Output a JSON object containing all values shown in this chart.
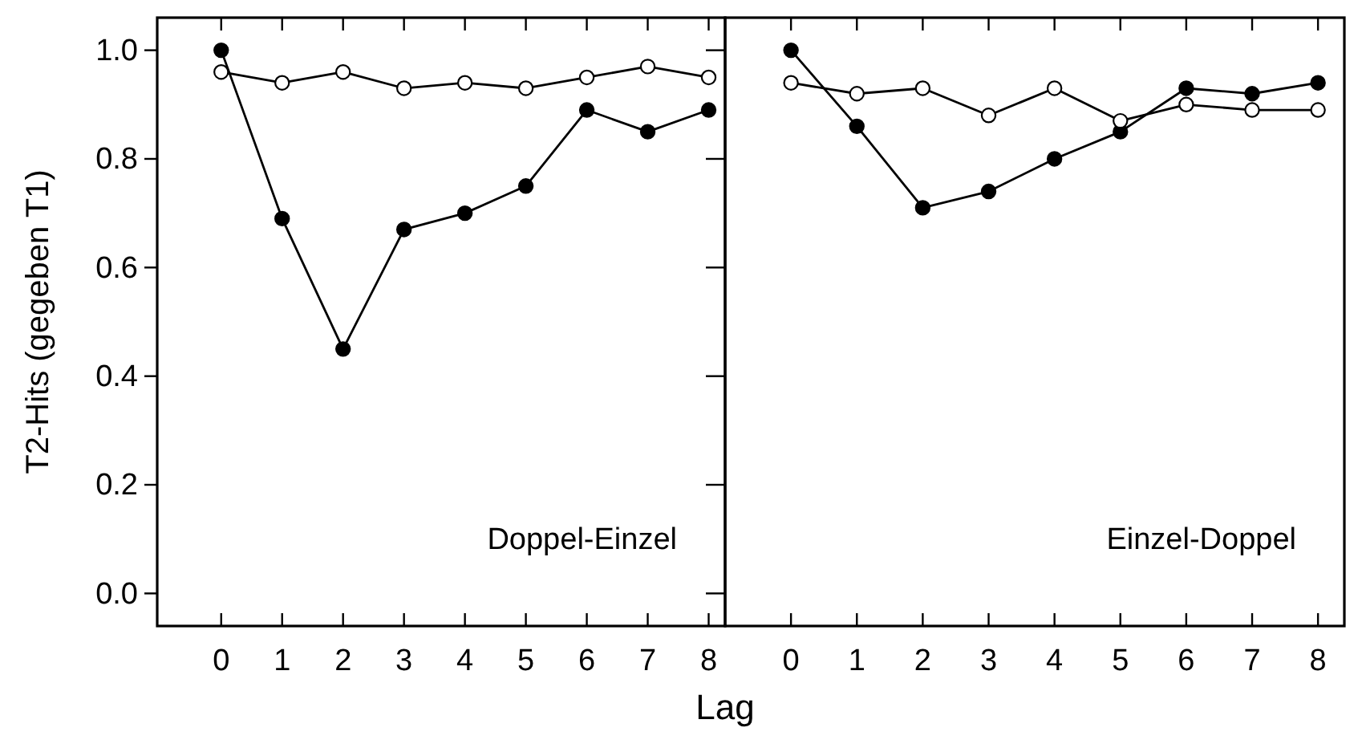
{
  "chart_data": [
    {
      "type": "line",
      "ylabel": "T2-Hits (gegeben T1)",
      "xlabel": "Lag",
      "annotations": [
        "Doppel-Einzel"
      ],
      "x": [
        0,
        1,
        2,
        3,
        4,
        5,
        6,
        7,
        8
      ],
      "xlim": [
        -1.05,
        8.27
      ],
      "xticks": [
        0,
        1,
        2,
        3,
        4,
        5,
        6,
        7,
        8
      ],
      "ylim": [
        -0.06,
        1.06
      ],
      "yticks": [
        {
          "value": 0,
          "label": "0.0"
        },
        {
          "value": 0.2,
          "label": "0.2"
        },
        {
          "value": 0.4,
          "label": "0.4"
        },
        {
          "value": 0.6,
          "label": "0.6"
        },
        {
          "value": 0.8,
          "label": "0.8"
        },
        {
          "value": 1,
          "label": "1.0"
        }
      ],
      "marker": "circle",
      "grid": false,
      "series": [
        {
          "color": "#000000",
          "values": [
            1.0,
            0.69,
            0.45,
            0.67,
            0.7,
            0.75,
            0.89,
            0.85,
            0.89
          ]
        },
        {
          "color": "#000000",
          "values": [
            0.96,
            0.94,
            0.96,
            0.93,
            0.94,
            0.93,
            0.95,
            0.97,
            0.95
          ]
        }
      ]
    },
    {
      "type": "line",
      "annotations": [
        "Einzel-Doppel"
      ],
      "x": [
        0,
        1,
        2,
        3,
        4,
        5,
        6,
        7,
        8
      ],
      "xlim": [
        -1.0,
        8.4
      ],
      "xticks": [
        0,
        1,
        2,
        3,
        4,
        5,
        6,
        7,
        8
      ],
      "ylim": [
        -0.06,
        1.06
      ],
      "yticks": [
        {
          "value": 0,
          "label": null
        },
        {
          "value": 0.2,
          "label": null
        },
        {
          "value": 0.4,
          "label": null
        },
        {
          "value": 0.6,
          "label": null
        },
        {
          "value": 0.8,
          "label": null
        },
        {
          "value": 1,
          "label": null
        }
      ],
      "tick_labels": "x",
      "marker": "circle",
      "grid": false,
      "series": [
        {
          "color": "#000000",
          "values": [
            1.0,
            0.86,
            0.71,
            0.74,
            0.8,
            0.85,
            0.93,
            0.92,
            0.94
          ]
        },
        {
          "color": "#000000",
          "values": [
            0.94,
            0.92,
            0.93,
            0.88,
            0.93,
            0.87,
            0.9,
            0.89,
            0.89
          ]
        }
      ]
    }
  ]
}
